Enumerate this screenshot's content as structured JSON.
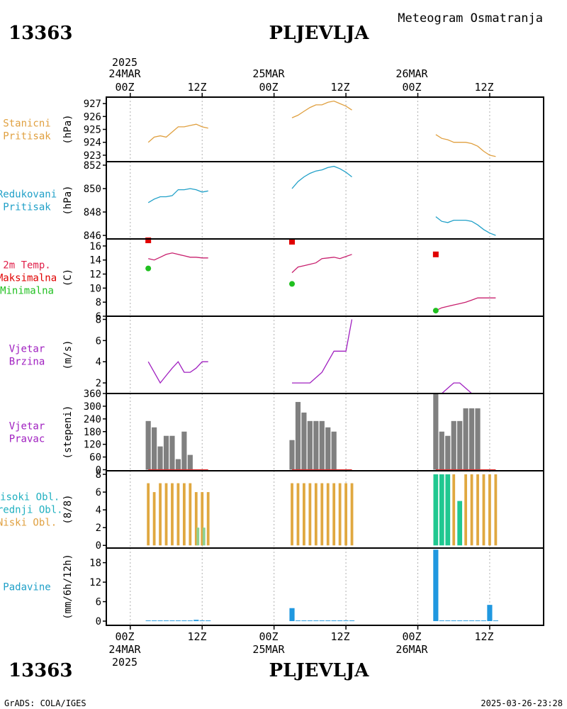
{
  "header": {
    "station_id": "13363",
    "station_name": "PLJEVLJA",
    "title": "Meteogram Osmatranja"
  },
  "footer": {
    "credit": "GrADS: COLA/IGES",
    "timestamp": "2025-03-26-23:28"
  },
  "time_axis": {
    "year": "2025",
    "day_labels": [
      "24MAR",
      "25MAR",
      "26MAR"
    ],
    "tick_labels": [
      "00Z",
      "12Z",
      "00Z",
      "12Z",
      "00Z",
      "12Z"
    ],
    "tick_hours": [
      0,
      12,
      24,
      36,
      48,
      60
    ],
    "range_hours": [
      -4,
      69
    ]
  },
  "chart_data": [
    {
      "id": "stanicni",
      "type": "line",
      "label_lines": [
        "Stanicni",
        "Pritisak"
      ],
      "label_colors": [
        "#e0a040",
        "#e0a040"
      ],
      "ylabel": "(hPa)",
      "ylim": [
        922.5,
        927.5
      ],
      "yticks": [
        923,
        924,
        925,
        926,
        927
      ],
      "series": [
        {
          "color": "#e0a040",
          "segments": [
            {
              "x": [
                3,
                4,
                5,
                6,
                7,
                8,
                9,
                10,
                11,
                12,
                13
              ],
              "y": [
                924.0,
                924.4,
                924.5,
                924.4,
                924.8,
                925.2,
                925.2,
                925.3,
                925.4,
                925.2,
                925.1
              ]
            },
            {
              "x": [
                27,
                28,
                29,
                30,
                31,
                32,
                33,
                34,
                35,
                36,
                37
              ],
              "y": [
                925.9,
                926.1,
                926.4,
                926.7,
                926.9,
                926.9,
                927.1,
                927.2,
                927.0,
                926.8,
                926.5
              ]
            },
            {
              "x": [
                51,
                52,
                53,
                54,
                55,
                56,
                57,
                58,
                59,
                60,
                61
              ],
              "y": [
                924.6,
                924.3,
                924.2,
                924.0,
                924.0,
                924.0,
                923.9,
                923.7,
                923.3,
                923.0,
                922.9
              ]
            }
          ]
        }
      ],
      "bars": []
    },
    {
      "id": "redukovani",
      "type": "line",
      "label_lines": [
        "Redukovani",
        "Pritisak"
      ],
      "label_colors": [
        "#20a0c8",
        "#20a0c8"
      ],
      "ylabel": "(hPa)",
      "ylim": [
        845.7,
        852.3
      ],
      "yticks": [
        846,
        848,
        850,
        852
      ],
      "series": [
        {
          "color": "#20a0c8",
          "segments": [
            {
              "x": [
                3,
                4,
                5,
                6,
                7,
                8,
                9,
                10,
                11,
                12,
                13
              ],
              "y": [
                848.8,
                849.1,
                849.3,
                849.3,
                849.4,
                849.9,
                849.9,
                850.0,
                849.9,
                849.7,
                849.8
              ]
            },
            {
              "x": [
                27,
                28,
                29,
                30,
                31,
                32,
                33,
                34,
                35,
                36,
                37
              ],
              "y": [
                850.0,
                850.6,
                851.0,
                851.3,
                851.5,
                851.6,
                851.8,
                851.9,
                851.7,
                851.4,
                851.0
              ]
            },
            {
              "x": [
                51,
                52,
                53,
                54,
                55,
                56,
                57,
                58,
                59,
                60,
                61
              ],
              "y": [
                847.6,
                847.2,
                847.1,
                847.3,
                847.3,
                847.3,
                847.2,
                846.9,
                846.5,
                846.2,
                846.0
              ]
            }
          ]
        }
      ],
      "bars": []
    },
    {
      "id": "temperatura",
      "type": "line",
      "label_lines": [
        "2m Temp.",
        "Maksimalna",
        "Minimalna"
      ],
      "label_colors": [
        "#e0204a",
        "#e00000",
        "#20c020"
      ],
      "ylabel": "(C)",
      "ylim": [
        6,
        17
      ],
      "yticks": [
        6,
        8,
        10,
        12,
        14,
        16
      ],
      "series": [
        {
          "color": "#c8206e",
          "segments": [
            {
              "x": [
                3,
                4,
                5,
                6,
                7,
                8,
                9,
                10,
                11,
                12,
                13
              ],
              "y": [
                14.2,
                14.0,
                14.4,
                14.8,
                15.0,
                14.8,
                14.6,
                14.4,
                14.4,
                14.3,
                14.3
              ]
            },
            {
              "x": [
                27,
                28,
                29,
                30,
                31,
                32,
                33,
                34,
                35,
                36,
                37
              ],
              "y": [
                12.2,
                13.0,
                13.2,
                13.4,
                13.6,
                14.2,
                14.3,
                14.4,
                14.2,
                14.5,
                14.8
              ]
            },
            {
              "x": [
                51,
                52,
                53,
                54,
                55,
                56,
                57,
                58,
                59,
                60,
                61
              ],
              "y": [
                6.8,
                7.2,
                7.4,
                7.6,
                7.8,
                8.0,
                8.3,
                8.6,
                8.6,
                8.6,
                8.6
              ]
            }
          ]
        }
      ],
      "max_points": {
        "x": [
          3,
          27,
          51
        ],
        "y": [
          16.8,
          16.6,
          14.8
        ],
        "color": "#e00000"
      },
      "min_points": {
        "x": [
          3,
          27,
          51
        ],
        "y": [
          12.8,
          10.6,
          6.8
        ],
        "color": "#20c020"
      },
      "bars": []
    },
    {
      "id": "vjetar_brzina",
      "type": "line",
      "label_lines": [
        "Vjetar",
        "Brzina"
      ],
      "label_colors": [
        "#a020c0",
        "#a020c0"
      ],
      "ylabel": "(m/s)",
      "ylim": [
        1,
        8.3
      ],
      "yticks": [
        2,
        4,
        6,
        8
      ],
      "series": [
        {
          "color": "#a020c0",
          "segments": [
            {
              "x": [
                3,
                4,
                5,
                6,
                7,
                8,
                9,
                10,
                11,
                12,
                13
              ],
              "y": [
                4,
                3,
                2,
                2.7,
                3.4,
                4,
                3,
                3,
                3.4,
                4,
                4
              ]
            },
            {
              "x": [
                27,
                28,
                29,
                30,
                31,
                32,
                33,
                34,
                35,
                36,
                37
              ],
              "y": [
                2,
                2,
                2,
                2,
                2.5,
                3,
                4,
                5,
                5,
                5,
                8
              ]
            },
            {
              "x": [
                51,
                52,
                53,
                54,
                55,
                56,
                57,
                58,
                59,
                60,
                61
              ],
              "y": [
                1,
                1,
                1.5,
                2,
                2,
                1.5,
                1,
                1,
                1,
                1,
                1
              ]
            }
          ]
        }
      ],
      "bars": []
    },
    {
      "id": "vjetar_pravac",
      "type": "bar",
      "label_lines": [
        "Vjetar",
        "Pravac"
      ],
      "label_colors": [
        "#a020c0",
        "#a020c0"
      ],
      "ylabel": "(stepeni)",
      "ylim": [
        -5,
        360
      ],
      "yticks": [
        0,
        60,
        120,
        180,
        240,
        300,
        360
      ],
      "series": [],
      "bars": [
        {
          "color": "#808080",
          "width": 0.85,
          "offset": 0,
          "x": [
            3,
            4,
            5,
            6,
            7,
            8,
            9,
            10,
            11,
            12,
            13
          ],
          "y": [
            230,
            200,
            110,
            160,
            160,
            50,
            180,
            70,
            0,
            0,
            0
          ]
        },
        {
          "color": "#808080",
          "width": 0.85,
          "offset": 0,
          "x": [
            27,
            28,
            29,
            30,
            31,
            32,
            33,
            34,
            35,
            36,
            37
          ],
          "y": [
            140,
            320,
            270,
            230,
            230,
            230,
            200,
            180,
            0,
            0,
            0
          ]
        },
        {
          "color": "#808080",
          "width": 0.85,
          "offset": 0,
          "x": [
            51,
            52,
            53,
            54,
            55,
            56,
            57,
            58,
            59,
            60,
            61
          ],
          "y": [
            360,
            180,
            160,
            230,
            230,
            290,
            290,
            290,
            0,
            0,
            0
          ]
        }
      ],
      "baseline_color": "#e03030"
    },
    {
      "id": "oblacnost",
      "type": "bar",
      "label_lines": [
        "Visoki Obl.",
        "Srednji Obl.",
        "Niski Obl."
      ],
      "label_colors": [
        "#20b0c0",
        "#20b0c0",
        "#e0a040"
      ],
      "ylabel": "(8/8)",
      "ylim": [
        -0.3,
        8.4
      ],
      "yticks": [
        0,
        2,
        4,
        6,
        8
      ],
      "series": [],
      "bars": [
        {
          "color": "#e0a840",
          "width": 0.45,
          "offset": 0,
          "x": [
            3,
            4,
            5,
            6,
            7,
            8,
            9,
            10,
            11,
            12,
            13
          ],
          "y": [
            7,
            6,
            7,
            7,
            7,
            7,
            7,
            7,
            6,
            6,
            6
          ]
        },
        {
          "color": "#90d090",
          "width": 0.45,
          "offset": 0.3,
          "x": [
            11,
            12
          ],
          "y": [
            2,
            2
          ]
        },
        {
          "color": "#e0a840",
          "width": 0.45,
          "offset": 0,
          "x": [
            27,
            28,
            29,
            30,
            31,
            32,
            33,
            34,
            35,
            36,
            37
          ],
          "y": [
            7,
            7,
            7,
            7,
            7,
            7,
            7,
            7,
            7,
            7,
            7
          ]
        },
        {
          "color": "#20c890",
          "width": 0.8,
          "offset": 0,
          "x": [
            51,
            52,
            53,
            55
          ],
          "y": [
            8,
            8,
            8,
            5
          ]
        },
        {
          "color": "#e0a840",
          "width": 0.45,
          "offset": 0,
          "x": [
            54,
            56,
            57,
            58,
            59,
            60,
            61
          ],
          "y": [
            8,
            8,
            8,
            8,
            8,
            8,
            8
          ]
        }
      ]
    },
    {
      "id": "padavine",
      "type": "bar",
      "label_lines": [
        "Padavine"
      ],
      "label_colors": [
        "#20a0c8"
      ],
      "ylabel": "(mm/6h/12h)",
      "ylim": [
        -1.3,
        22.5
      ],
      "yticks": [
        0,
        6,
        12,
        18
      ],
      "series": [],
      "bars": [
        {
          "color": "#2098e0",
          "width": 0.85,
          "offset": 0,
          "x": [
            3,
            4,
            5,
            6,
            7,
            8,
            9,
            10,
            11,
            12,
            13
          ],
          "y": [
            0.2,
            0.2,
            0.2,
            0.2,
            0.2,
            0.2,
            0.2,
            0.2,
            0.4,
            0.2,
            0.2
          ]
        },
        {
          "color": "#2098e0",
          "width": 0.85,
          "offset": 0,
          "x": [
            27,
            28,
            29,
            30,
            31,
            32,
            33,
            34,
            35,
            36,
            37
          ],
          "y": [
            4,
            0.2,
            0.2,
            0.2,
            0.2,
            0.2,
            0.2,
            0.2,
            0.2,
            0.2,
            0.2
          ]
        },
        {
          "color": "#2098e0",
          "width": 0.85,
          "offset": 0,
          "x": [
            51,
            52,
            53,
            54,
            55,
            56,
            57,
            58,
            59,
            60,
            61
          ],
          "y": [
            22,
            0.2,
            0.2,
            0.2,
            0.2,
            0.2,
            0.2,
            0.2,
            0.2,
            5,
            0.2
          ]
        }
      ]
    }
  ]
}
